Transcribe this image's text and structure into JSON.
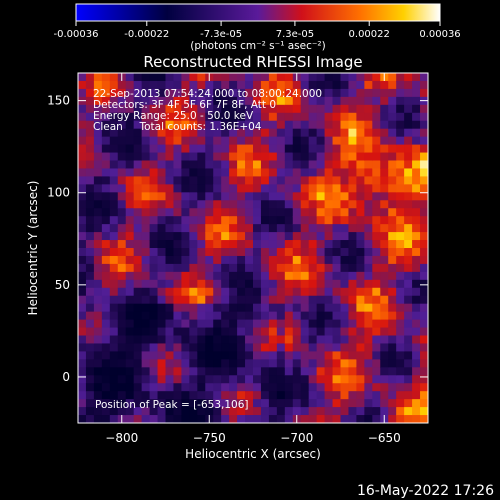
{
  "chart_data": {
    "type": "heatmap",
    "title": "Reconstructed RHESSI Image",
    "xlabel": "Heliocentric X (arcsec)",
    "ylabel": "Heliocentric Y (arcsec)",
    "xlim": [
      -825,
      -625
    ],
    "ylim": [
      -25,
      165
    ],
    "x_ticks": [
      -800,
      -750,
      -700,
      -650
    ],
    "y_ticks": [
      0,
      50,
      100,
      150
    ],
    "colorbar": {
      "min": -0.00036,
      "max": 0.00036,
      "tick_values": [
        -0.00036,
        -0.00022,
        -7.3e-05,
        7.3e-05,
        0.00022,
        0.00036
      ],
      "tick_labels": [
        "-0.00036",
        "-0.00022",
        "-7.3e-05",
        "7.3e-05",
        "0.00022",
        "0.00036"
      ],
      "units_label": "(photons cm⁻² s⁻¹ asec⁻²)"
    },
    "annotations": [
      "22-Sep-2013 07:54:24.000 to 08:00:24.000",
      "Detectors: 3F 4F 5F 6F 7F 8F, Att 0",
      "Energy Range: 25.0 - 50.0 keV",
      "Clean     Total counts: 1.36E+04"
    ],
    "peak_label": "Position of Peak = [-653,106]",
    "peak_position": [
      -653,
      106
    ]
  },
  "footer": {
    "date_stamp": "16-May-2022 17:26"
  },
  "colors": {
    "background": "#000000",
    "foreground": "#ffffff"
  }
}
